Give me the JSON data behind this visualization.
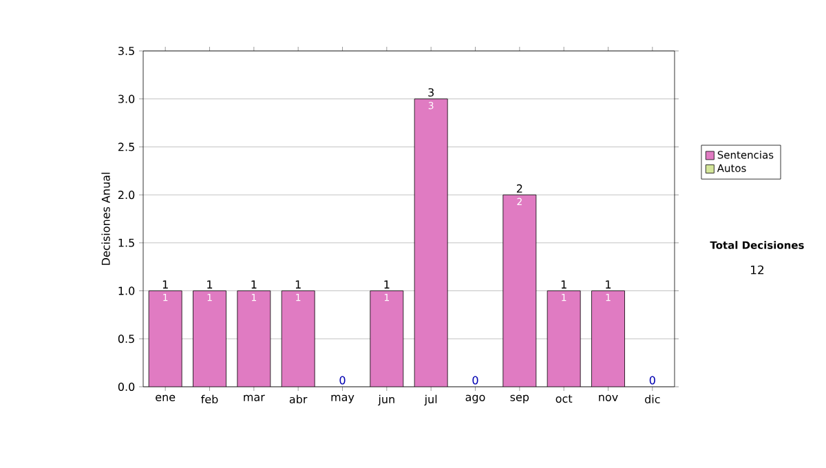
{
  "chart_data": {
    "type": "bar",
    "stacked": true,
    "ylabel": "Decisiones Anual",
    "categories": [
      "ene",
      "feb",
      "mar",
      "abr",
      "may",
      "jun",
      "jul",
      "ago",
      "sep",
      "oct",
      "nov",
      "dic"
    ],
    "series": [
      {
        "name": "Sentencias",
        "color": "#e07bc2",
        "values": [
          1,
          1,
          1,
          1,
          0,
          1,
          3,
          0,
          2,
          1,
          1,
          0
        ],
        "value_labels": [
          "1",
          "1",
          "1",
          "1",
          null,
          "1",
          "3",
          null,
          "2",
          "1",
          "1",
          null
        ]
      },
      {
        "name": "Autos",
        "color": "#d4e69a",
        "values": [
          0,
          0,
          0,
          0,
          0,
          0,
          0,
          0,
          0,
          0,
          0,
          0
        ]
      }
    ],
    "totals": [
      "1",
      "1",
      "1",
      "1",
      "0",
      "1",
      "3",
      "0",
      "2",
      "1",
      "1",
      "0"
    ],
    "ylim": [
      0,
      3.5
    ],
    "yticks": [
      {
        "value": 0,
        "label": "0.0"
      },
      {
        "value": 0.5,
        "label": "0.5"
      },
      {
        "value": 1,
        "label": "1.0"
      },
      {
        "value": 1.5,
        "label": "1.5"
      },
      {
        "value": 2,
        "label": "2.0"
      },
      {
        "value": 2.5,
        "label": "2.5"
      },
      {
        "value": 3,
        "label": "3.0"
      },
      {
        "value": 3.5,
        "label": "3.5"
      }
    ],
    "grid": "y",
    "legend": "right",
    "annotations": [
      "Total Decisiones",
      "12"
    ]
  }
}
